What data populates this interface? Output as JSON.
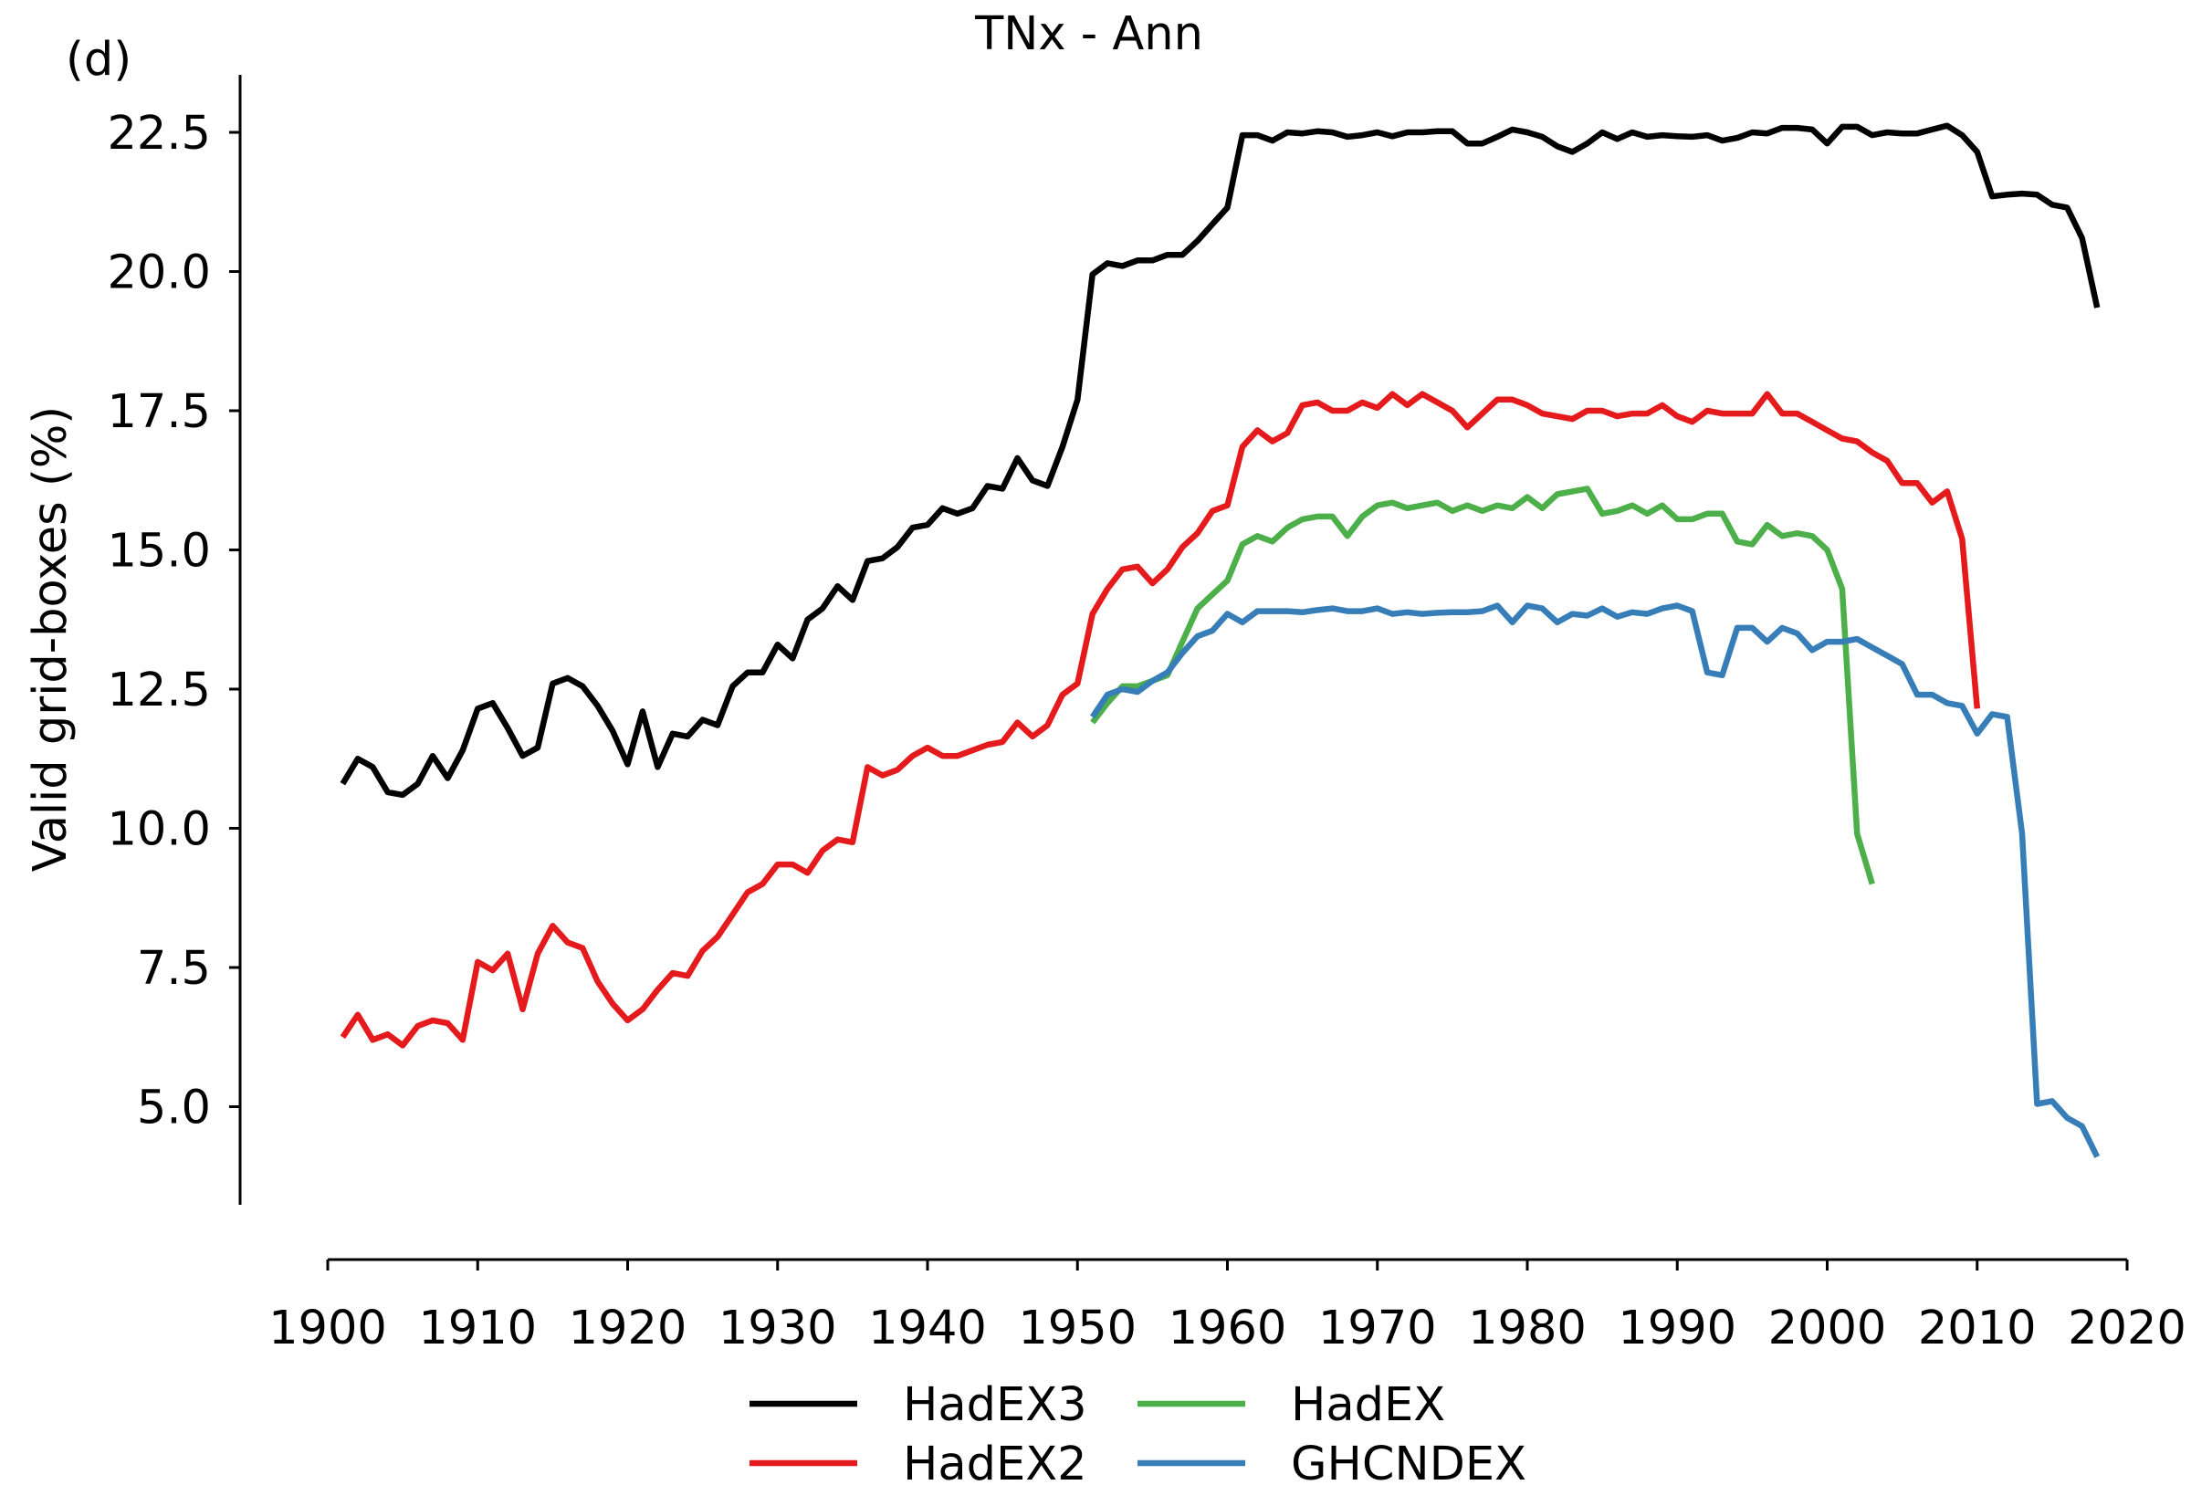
{
  "panel_label": "(d)",
  "chart_data": {
    "type": "line",
    "title": "TNx - Ann",
    "xlabel": "",
    "ylabel": "Valid grid-boxes (%)",
    "xlim": [
      1900,
      2020
    ],
    "ylim": [
      3.5,
      23.5
    ],
    "x_ticks": [
      1900,
      1910,
      1920,
      1930,
      1940,
      1950,
      1960,
      1970,
      1980,
      1990,
      2000,
      2010,
      2020
    ],
    "y_ticks": [
      5.0,
      7.5,
      10.0,
      12.5,
      15.0,
      17.5,
      20.0,
      22.5
    ],
    "y_tick_labels": [
      "5.0",
      "7.5",
      "10.0",
      "12.5",
      "15.0",
      "17.5",
      "20.0",
      "22.5"
    ],
    "grid": false,
    "legend_position": "bottom-center",
    "series": [
      {
        "name": "HadEX3",
        "color": "#000000",
        "x_start": 1901,
        "values": [
          10.8,
          11.25,
          11.1,
          10.65,
          10.6,
          10.8,
          11.3,
          10.9,
          11.4,
          12.15,
          12.25,
          11.8,
          11.3,
          11.45,
          12.6,
          12.7,
          12.55,
          12.2,
          11.75,
          11.15,
          12.1,
          11.1,
          11.7,
          11.65,
          11.95,
          11.85,
          12.55,
          12.8,
          12.8,
          13.3,
          13.05,
          13.75,
          13.95,
          14.35,
          14.1,
          14.8,
          14.85,
          15.05,
          15.4,
          15.45,
          15.75,
          15.65,
          15.75,
          16.15,
          16.1,
          16.65,
          16.25,
          16.15,
          16.85,
          17.7,
          19.95,
          20.15,
          20.1,
          20.2,
          20.2,
          20.3,
          20.3,
          20.55,
          20.85,
          21.15,
          22.45,
          22.45,
          22.35,
          22.5,
          22.48,
          22.52,
          22.5,
          22.42,
          22.45,
          22.5,
          22.43,
          22.5,
          22.5,
          22.52,
          22.52,
          22.3,
          22.3,
          22.42,
          22.55,
          22.5,
          22.42,
          22.25,
          22.15,
          22.3,
          22.5,
          22.38,
          22.5,
          22.42,
          22.45,
          22.43,
          22.42,
          22.45,
          22.35,
          22.4,
          22.5,
          22.48,
          22.58,
          22.58,
          22.55,
          22.3,
          22.6,
          22.6,
          22.45,
          22.5,
          22.48,
          22.48,
          22.55,
          22.62,
          22.45,
          22.15,
          21.35,
          21.38,
          21.4,
          21.38,
          21.2,
          21.15,
          20.6,
          19.35
        ]
      },
      {
        "name": "HadEX2",
        "color": "#e41a1c",
        "x_start": 1901,
        "values": [
          6.25,
          6.65,
          6.2,
          6.3,
          6.1,
          6.45,
          6.55,
          6.5,
          6.2,
          7.6,
          7.45,
          7.75,
          6.75,
          7.75,
          8.25,
          7.95,
          7.85,
          7.25,
          6.85,
          6.55,
          6.75,
          7.1,
          7.4,
          7.35,
          7.8,
          8.05,
          8.45,
          8.85,
          9.0,
          9.35,
          9.35,
          9.2,
          9.6,
          9.8,
          9.75,
          11.1,
          10.95,
          11.05,
          11.3,
          11.45,
          11.3,
          11.3,
          11.4,
          11.5,
          11.55,
          11.9,
          11.65,
          11.85,
          12.4,
          12.6,
          13.85,
          14.3,
          14.65,
          14.7,
          14.4,
          14.65,
          15.05,
          15.3,
          15.7,
          15.8,
          16.85,
          17.15,
          16.95,
          17.1,
          17.6,
          17.65,
          17.5,
          17.5,
          17.65,
          17.55,
          17.8,
          17.6,
          17.8,
          17.65,
          17.5,
          17.2,
          17.45,
          17.7,
          17.7,
          17.6,
          17.45,
          17.4,
          17.35,
          17.5,
          17.5,
          17.4,
          17.45,
          17.45,
          17.6,
          17.4,
          17.3,
          17.5,
          17.45,
          17.45,
          17.45,
          17.8,
          17.45,
          17.45,
          17.3,
          17.15,
          17.0,
          16.95,
          16.75,
          16.6,
          16.2,
          16.2,
          15.85,
          16.05,
          15.2,
          12.15
        ]
      },
      {
        "name": "HadEX",
        "color": "#4daf4a",
        "x_start": 1951,
        "values": [
          11.9,
          12.25,
          12.55,
          12.55,
          12.65,
          12.75,
          13.35,
          13.95,
          14.2,
          14.45,
          15.1,
          15.25,
          15.15,
          15.4,
          15.55,
          15.6,
          15.6,
          15.25,
          15.6,
          15.8,
          15.85,
          15.75,
          15.8,
          15.85,
          15.7,
          15.8,
          15.7,
          15.8,
          15.75,
          15.95,
          15.75,
          16.0,
          16.05,
          16.1,
          15.65,
          15.7,
          15.8,
          15.65,
          15.8,
          15.55,
          15.55,
          15.65,
          15.65,
          15.15,
          15.1,
          15.45,
          15.25,
          15.3,
          15.25,
          15.0,
          14.3,
          9.9,
          9.0
        ]
      },
      {
        "name": "GHCNDEX",
        "color": "#377eb8",
        "x_start": 1951,
        "values": [
          12.0,
          12.4,
          12.5,
          12.45,
          12.65,
          12.8,
          13.15,
          13.45,
          13.55,
          13.85,
          13.7,
          13.9,
          13.9,
          13.9,
          13.88,
          13.92,
          13.95,
          13.9,
          13.9,
          13.95,
          13.85,
          13.88,
          13.85,
          13.87,
          13.88,
          13.88,
          13.9,
          14.0,
          13.7,
          14.0,
          13.95,
          13.7,
          13.85,
          13.82,
          13.95,
          13.8,
          13.88,
          13.85,
          13.95,
          14.0,
          13.9,
          12.8,
          12.75,
          13.6,
          13.6,
          13.35,
          13.6,
          13.5,
          13.2,
          13.35,
          13.35,
          13.4,
          13.25,
          13.1,
          12.95,
          12.4,
          12.4,
          12.25,
          12.2,
          11.7,
          12.05,
          12.0,
          9.9,
          5.05,
          5.1,
          4.8,
          4.65,
          4.1
        ]
      }
    ]
  }
}
